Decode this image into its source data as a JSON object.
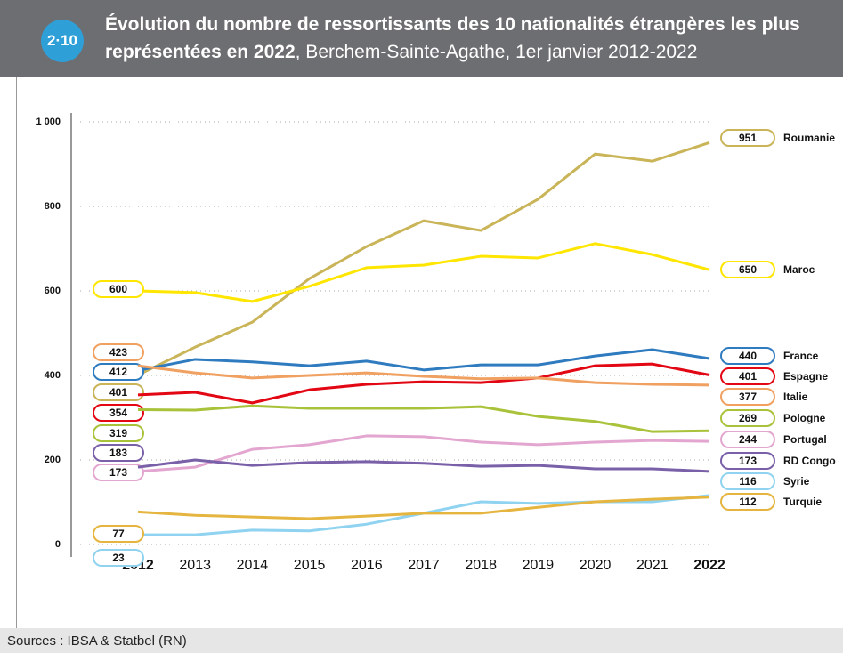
{
  "badge": "2·10",
  "chart_data": {
    "type": "line",
    "title": "Évolution du nombre de ressortissants des 10 nationalités étrangères les plus représentées en 2022",
    "subtitle": ", Berchem-Sainte-Agathe, 1er janvier 2012-2022",
    "categories": [
      "2012",
      "2013",
      "2014",
      "2015",
      "2016",
      "2017",
      "2018",
      "2019",
      "2020",
      "2021",
      "2022"
    ],
    "ylim": [
      0,
      1000
    ],
    "yticks": [
      0,
      200,
      400,
      600,
      800,
      {
        "value": 1000,
        "label": "1 000"
      }
    ],
    "grid": true,
    "series": [
      {
        "name": "Roumanie",
        "color": "#c9b458",
        "values": [
          401,
          467,
          526,
          629,
          705,
          766,
          743,
          817,
          924,
          907,
          951
        ]
      },
      {
        "name": "Maroc",
        "color": "#ffe600",
        "values": [
          600,
          596,
          575,
          611,
          655,
          661,
          682,
          678,
          712,
          686,
          650
        ]
      },
      {
        "name": "France",
        "color": "#2f7bbf",
        "values": [
          412,
          438,
          432,
          423,
          434,
          413,
          425,
          425,
          446,
          461,
          440
        ]
      },
      {
        "name": "Espagne",
        "color": "#e30613",
        "values": [
          354,
          360,
          335,
          366,
          379,
          385,
          383,
          394,
          423,
          427,
          401
        ]
      },
      {
        "name": "Italie",
        "color": "#f0a060",
        "values": [
          423,
          406,
          394,
          400,
          406,
          398,
          392,
          394,
          383,
          379,
          377
        ]
      },
      {
        "name": "Pologne",
        "color": "#a8c23a",
        "values": [
          319,
          318,
          328,
          322,
          322,
          322,
          326,
          303,
          291,
          267,
          269
        ]
      },
      {
        "name": "Portugal",
        "color": "#e3a6d0",
        "values": [
          173,
          183,
          225,
          236,
          257,
          255,
          242,
          236,
          242,
          246,
          244
        ]
      },
      {
        "name": "RD Congo",
        "color": "#7a60a8",
        "values": [
          183,
          200,
          187,
          194,
          196,
          192,
          185,
          187,
          179,
          179,
          173
        ]
      },
      {
        "name": "Syrie",
        "color": "#8fd3f0",
        "values": [
          23,
          23,
          34,
          32,
          48,
          74,
          101,
          97,
          101,
          101,
          116
        ]
      },
      {
        "name": "Turquie",
        "color": "#e5b540",
        "values": [
          77,
          69,
          65,
          61,
          67,
          74,
          74,
          88,
          101,
          107,
          112
        ]
      }
    ]
  },
  "source": "Sources : IBSA & Statbel (RN)"
}
